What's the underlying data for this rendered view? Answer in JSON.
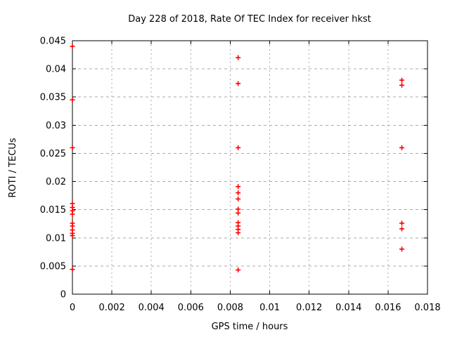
{
  "window": {
    "background": "#ffffff"
  },
  "chart_data": {
    "type": "scatter",
    "title": "Day 228 of 2018, Rate Of TEC Index for receiver hkst",
    "xlabel": "GPS time / hours",
    "ylabel": "ROTI / TECUs",
    "xlim": [
      0,
      0.018
    ],
    "ylim": [
      0,
      0.045
    ],
    "grid": true,
    "legend": "none",
    "xticks": {
      "values": [
        0,
        0.002,
        0.004,
        0.006,
        0.008,
        0.01,
        0.012,
        0.014,
        0.016,
        0.018
      ],
      "labels": [
        "0",
        "0.002",
        "0.004",
        "0.006",
        "0.008",
        "0.01",
        "0.012",
        "0.014",
        "0.016",
        "0.018"
      ]
    },
    "yticks": {
      "values": [
        0,
        0.005,
        0.01,
        0.015,
        0.02,
        0.025,
        0.03,
        0.035,
        0.04,
        0.045
      ],
      "labels": [
        "0",
        "0.005",
        "0.01",
        "0.015",
        "0.02",
        "0.025",
        "0.03",
        "0.035",
        "0.04",
        "0.045"
      ]
    },
    "marker": {
      "shape": "plus",
      "color": "#ff0000",
      "size": 7
    },
    "colors": {
      "axis": "#000000",
      "grid": "#aaaaaa",
      "text": "#000000",
      "background": "#ffffff"
    },
    "series": [
      {
        "name": "roti",
        "points": [
          [
            0,
            0.044
          ],
          [
            0,
            0.0345
          ],
          [
            0,
            0.026
          ],
          [
            0,
            0.0161
          ],
          [
            0,
            0.0154
          ],
          [
            0,
            0.0148
          ],
          [
            0,
            0.0142
          ],
          [
            0,
            0.0126
          ],
          [
            0,
            0.0121
          ],
          [
            0,
            0.0114
          ],
          [
            0,
            0.0108
          ],
          [
            0,
            0.0104
          ],
          [
            0,
            0.0044
          ],
          [
            0.0084,
            0.042
          ],
          [
            0.0084,
            0.0374
          ],
          [
            0.0084,
            0.026
          ],
          [
            0.0084,
            0.0191
          ],
          [
            0.0084,
            0.018
          ],
          [
            0.0084,
            0.0169
          ],
          [
            0.0084,
            0.0151
          ],
          [
            0.0084,
            0.0144
          ],
          [
            0.0084,
            0.0127
          ],
          [
            0.0084,
            0.0121
          ],
          [
            0.0084,
            0.0115
          ],
          [
            0.0084,
            0.0109
          ],
          [
            0.0084,
            0.0043
          ],
          [
            0.0167,
            0.038
          ],
          [
            0.0167,
            0.0371
          ],
          [
            0.0167,
            0.026
          ],
          [
            0.0167,
            0.0126
          ],
          [
            0.0167,
            0.0116
          ],
          [
            0.0167,
            0.008
          ]
        ]
      }
    ]
  }
}
